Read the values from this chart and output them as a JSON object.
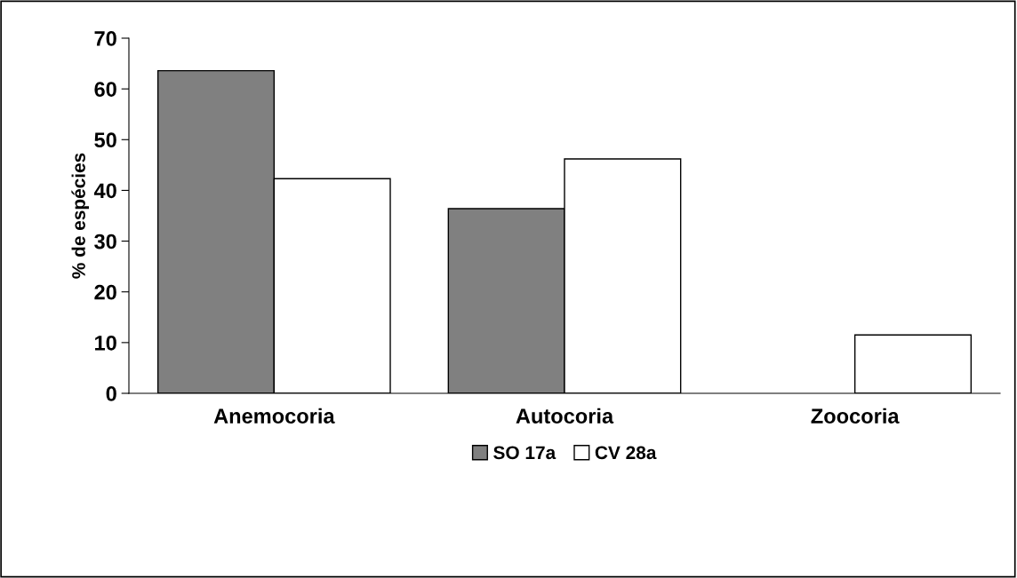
{
  "chart_data": {
    "type": "bar",
    "ylabel": "% de espécies",
    "categories": [
      "Anemocoria",
      "Autocoria",
      "Zoocoria"
    ],
    "series": [
      {
        "name": "SO 17a",
        "color": "#808080",
        "values": [
          63.6,
          36.4,
          null
        ]
      },
      {
        "name": "CV 28a",
        "color": "#ffffff",
        "values": [
          42.3,
          46.2,
          11.5
        ]
      }
    ],
    "ylim": [
      0,
      70
    ],
    "yticks": [
      0,
      10,
      20,
      30,
      40,
      50,
      60,
      70
    ],
    "grid": false,
    "legend": "bottom"
  }
}
